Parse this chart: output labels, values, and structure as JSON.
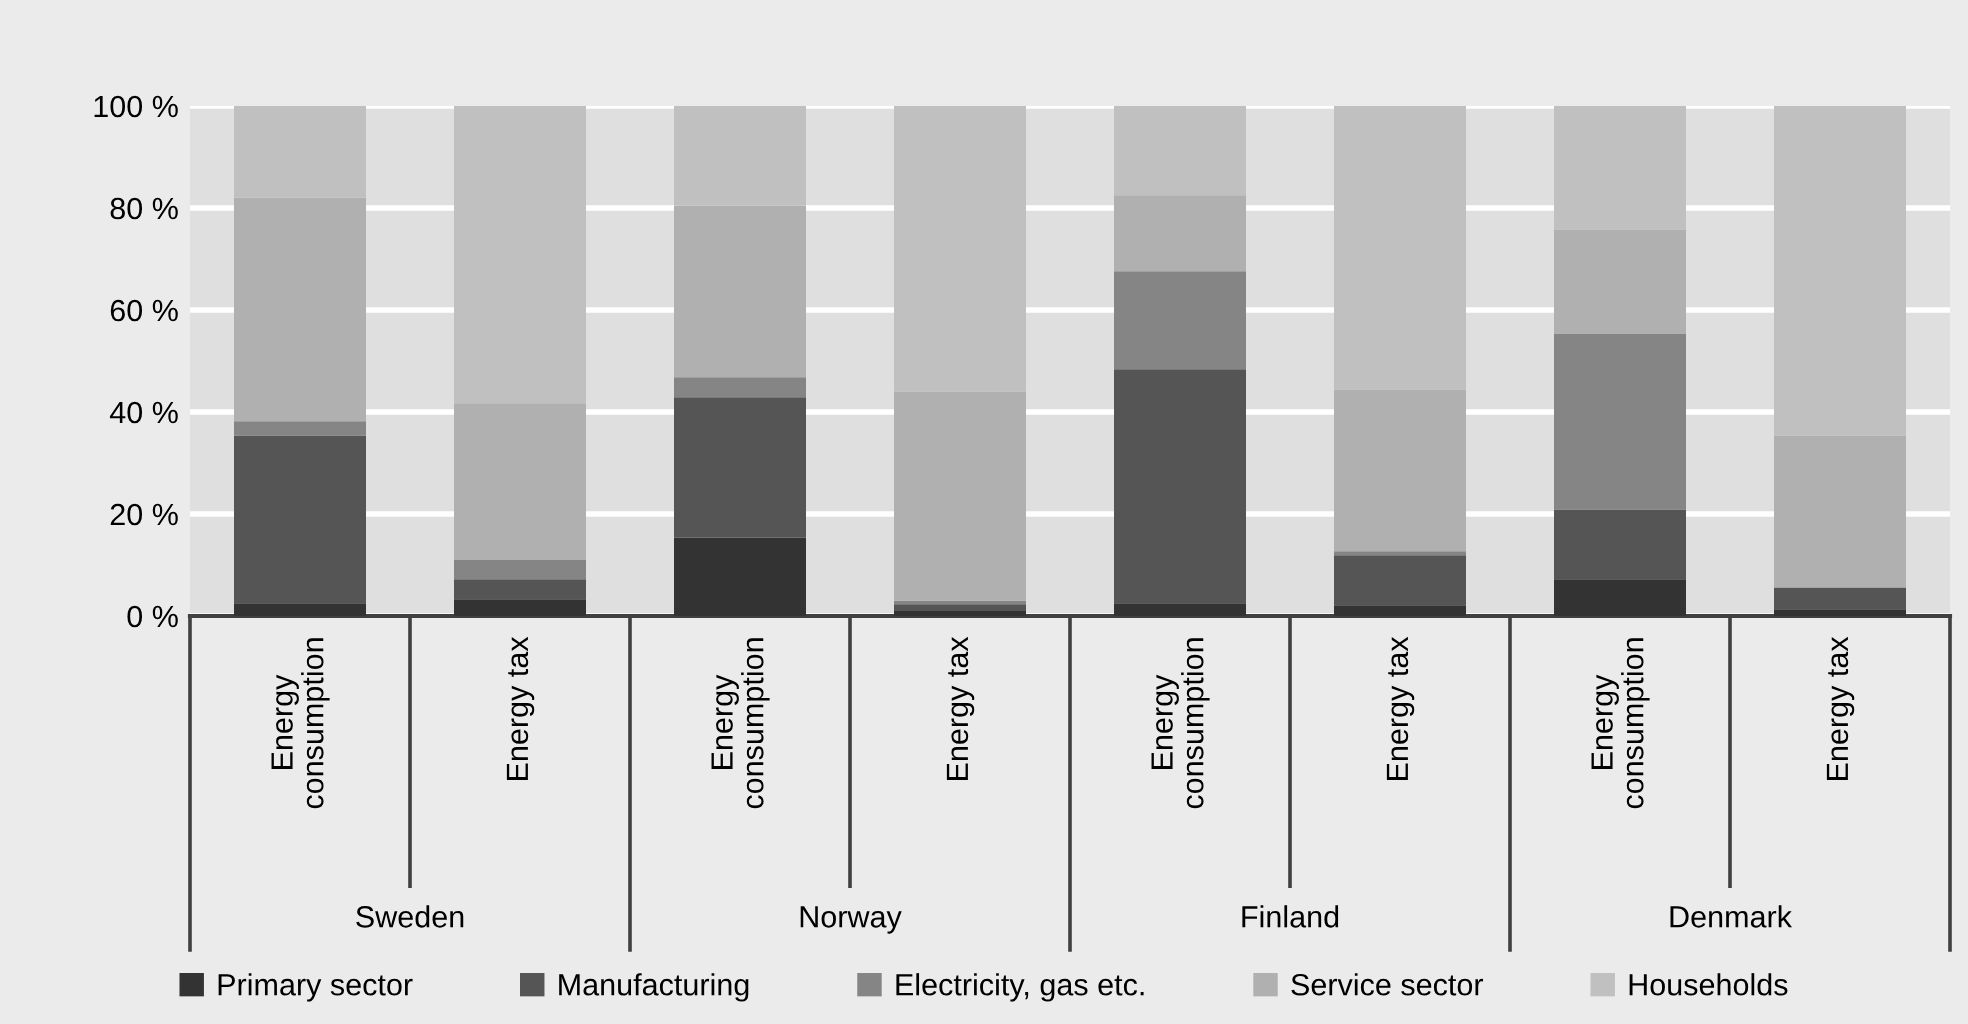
{
  "chart_data": {
    "type": "bar",
    "stacked": true,
    "categories": [
      "Energy consumption",
      "Energy tax",
      "Energy consumption",
      "Energy tax",
      "Energy consumption",
      "Energy tax",
      "Energy consumption",
      "Energy tax"
    ],
    "annotations": [
      "Sweden",
      "Norway",
      "Finland",
      "Denmark"
    ],
    "series": [
      {
        "name": "Primary sector",
        "color": "#333333",
        "values": [
          2.5,
          3.3,
          15.4,
          1.0,
          2.5,
          2.1,
          7.2,
          1.3
        ]
      },
      {
        "name": "Manufacturing",
        "color": "#555555",
        "values": [
          32.9,
          3.9,
          27.5,
          1.3,
          45.9,
          9.8,
          13.7,
          4.3
        ]
      },
      {
        "name": "Electricity, gas etc.",
        "color": "#858585",
        "values": [
          2.8,
          3.9,
          3.9,
          0.7,
          19.2,
          0.8,
          34.5,
          0.0
        ]
      },
      {
        "name": "Service sector",
        "color": "#b0b0b0",
        "values": [
          43.8,
          30.6,
          33.7,
          41.0,
          14.9,
          31.7,
          20.4,
          29.8
        ]
      },
      {
        "name": "Households",
        "color": "#c0c0c0",
        "values": [
          18.0,
          58.3,
          19.5,
          56.0,
          17.5,
          55.6,
          24.2,
          64.6
        ]
      }
    ],
    "ylim": [
      0,
      100
    ],
    "yticks": [
      {
        "value": 0,
        "label": "0 %"
      },
      {
        "value": 20,
        "label": "20 %"
      },
      {
        "value": 40,
        "label": "40 %"
      },
      {
        "value": 60,
        "label": "60 %"
      },
      {
        "value": 80,
        "label": "80 %"
      },
      {
        "value": 100,
        "label": "100 %"
      }
    ],
    "grid": "y",
    "legend": "bottom"
  }
}
